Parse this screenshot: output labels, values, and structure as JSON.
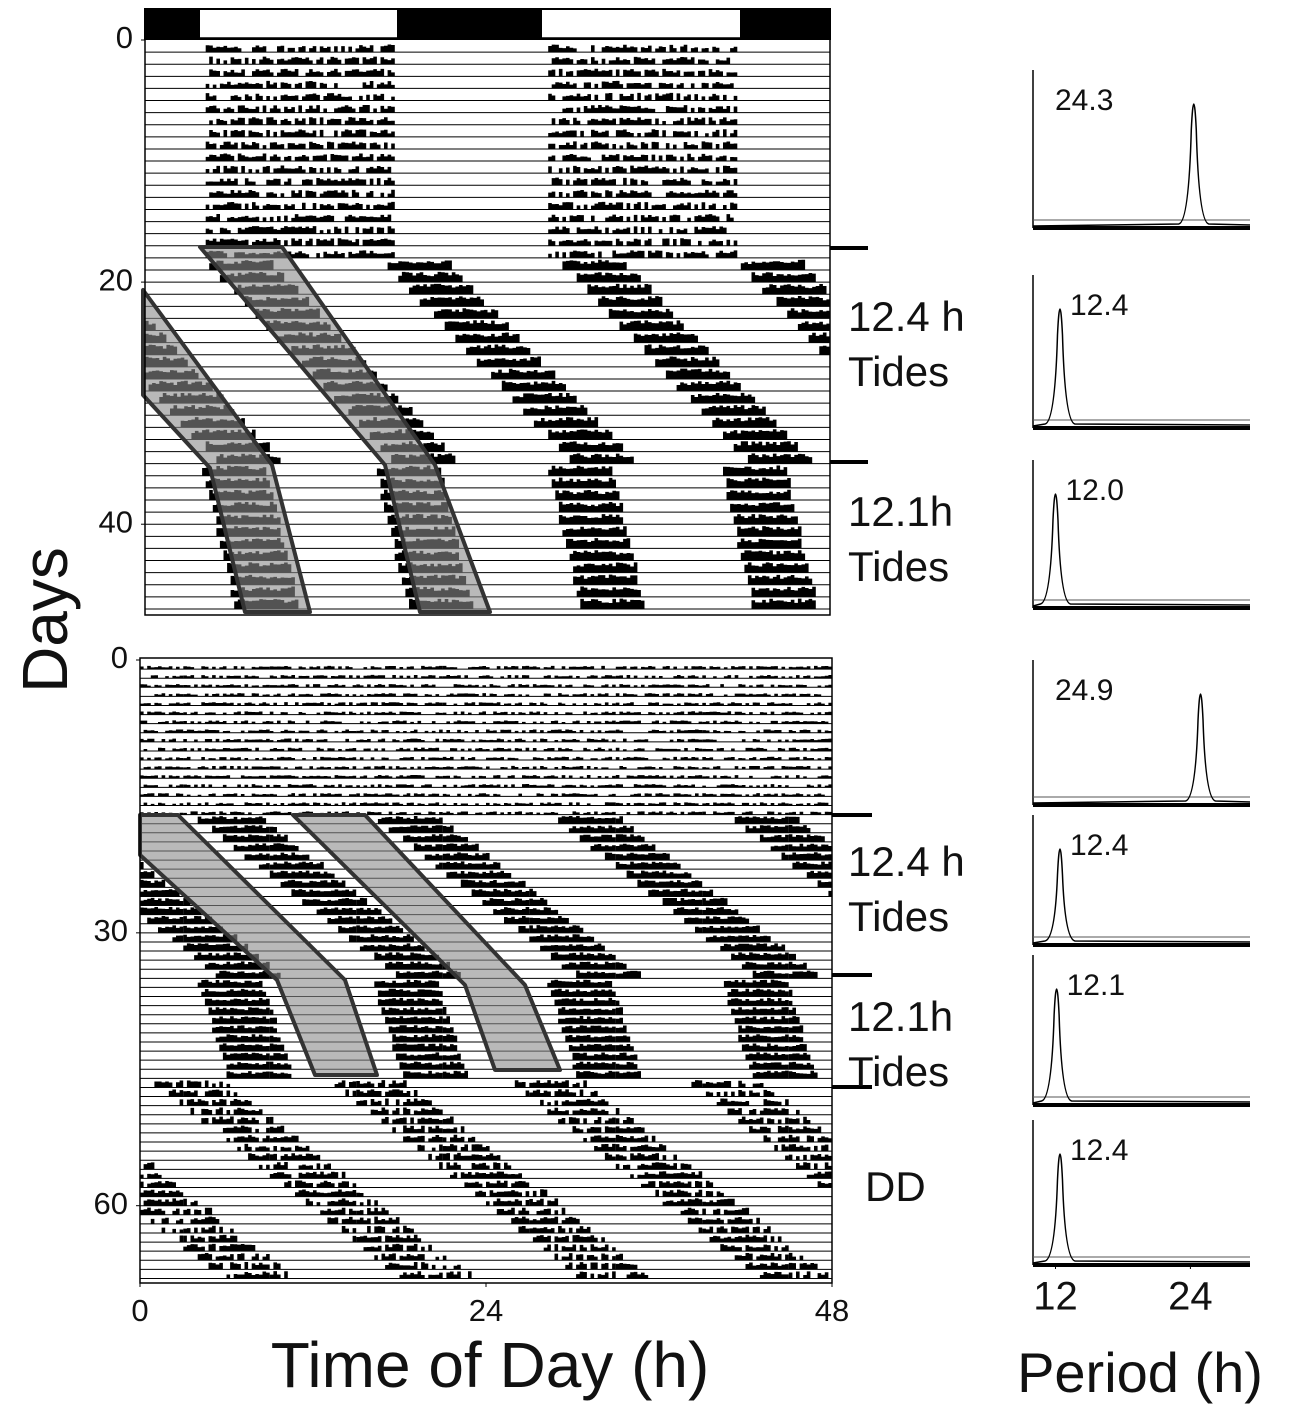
{
  "chart_data": [
    {
      "type": "actogram",
      "ylabel": "Days",
      "ylim": [
        0,
        47.5
      ],
      "yticks": [
        0,
        20,
        40
      ],
      "xlim": [
        0,
        48
      ],
      "annotations": [
        [
          "12.4 h",
          "Tides"
        ],
        [
          "12.1h",
          "Tides"
        ]
      ]
    },
    {
      "type": "actogram",
      "xlabel": "Time of Day (h)",
      "ylim": [
        0,
        68.5
      ],
      "yticks": [
        0,
        30,
        60
      ],
      "xlim": [
        0,
        48
      ],
      "xticks": [
        0,
        24,
        48
      ],
      "annotations": [
        [
          "12.4 h",
          "Tides"
        ],
        [
          "12.1h",
          "Tides"
        ],
        [
          "DD"
        ]
      ]
    },
    {
      "type": "periodogram",
      "xlim": [
        10,
        29.3
      ],
      "values": [
        24.3
      ]
    },
    {
      "type": "periodogram",
      "xlim": [
        10,
        29.3
      ],
      "values": [
        12.4
      ]
    },
    {
      "type": "periodogram",
      "xlim": [
        10,
        29.3
      ],
      "values": [
        12.0
      ],
      "value_labels": [
        "12.0"
      ]
    },
    {
      "type": "periodogram",
      "xlim": [
        10,
        29.3
      ],
      "values": [
        24.9
      ]
    },
    {
      "type": "periodogram",
      "xlim": [
        10,
        29.3
      ],
      "values": [
        12.4
      ]
    },
    {
      "type": "periodogram",
      "xlim": [
        10,
        29.3
      ],
      "values": [
        12.1
      ]
    },
    {
      "type": "periodogram",
      "xlim": [
        10,
        29.3
      ],
      "values": [
        12.4
      ],
      "xticks": [
        12,
        24
      ],
      "xlabel": "Period (h)"
    }
  ]
}
